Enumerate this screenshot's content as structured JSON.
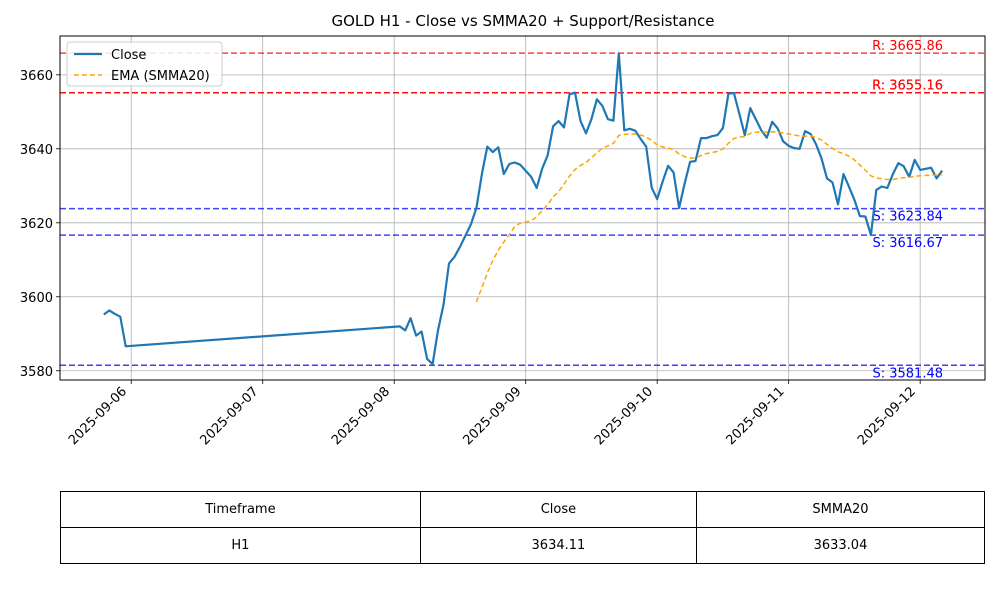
{
  "chart_data": {
    "type": "line",
    "title": "GOLD H1 - Close vs SMMA20 + Support/Resistance",
    "xlabel": "",
    "ylabel": "",
    "x_ticks": [
      "2025-09-06",
      "2025-09-07",
      "2025-09-08",
      "2025-09-09",
      "2025-09-10",
      "2025-09-11",
      "2025-09-12"
    ],
    "y_ticks": [
      3580,
      3600,
      3620,
      3640,
      3660
    ],
    "xlim": [
      "2025-09-05 11:00",
      "2025-09-12 11:50"
    ],
    "ylim": [
      3577.5,
      3670.5
    ],
    "grid": true,
    "legend_position": "top-left",
    "series": [
      {
        "name": "Close",
        "color": "#1f77b4",
        "style": "solid",
        "points": [
          [
            "2025-09-05 19:00",
            3595.2
          ],
          [
            "2025-09-05 20:00",
            3596.3
          ],
          [
            "2025-09-05 21:00",
            3595.4
          ],
          [
            "2025-09-05 22:00",
            3594.6
          ],
          [
            "2025-09-05 23:00",
            3586.6
          ],
          [
            "2025-09-08 01:00",
            3592.0
          ],
          [
            "2025-09-08 02:00",
            3590.9
          ],
          [
            "2025-09-08 03:00",
            3594.2
          ],
          [
            "2025-09-08 04:00",
            3589.5
          ],
          [
            "2025-09-08 05:00",
            3590.6
          ],
          [
            "2025-09-08 06:00",
            3583.2
          ],
          [
            "2025-09-08 07:00",
            3581.8
          ],
          [
            "2025-09-08 08:00",
            3590.9
          ],
          [
            "2025-09-08 09:00",
            3597.8
          ],
          [
            "2025-09-08 10:00",
            3609.0
          ],
          [
            "2025-09-08 11:00",
            3610.8
          ],
          [
            "2025-09-08 12:00",
            3613.5
          ],
          [
            "2025-09-08 13:00",
            3616.5
          ],
          [
            "2025-09-08 14:00",
            3619.6
          ],
          [
            "2025-09-08 15:00",
            3624.0
          ],
          [
            "2025-09-08 16:00",
            3633.2
          ],
          [
            "2025-09-08 17:00",
            3640.6
          ],
          [
            "2025-09-08 18:00",
            3639.1
          ],
          [
            "2025-09-08 19:00",
            3640.4
          ],
          [
            "2025-09-08 20:00",
            3633.2
          ],
          [
            "2025-09-08 21:00",
            3635.9
          ],
          [
            "2025-09-08 22:00",
            3636.3
          ],
          [
            "2025-09-08 23:00",
            3635.7
          ],
          [
            "2025-09-09 01:00",
            3632.4
          ],
          [
            "2025-09-09 02:00",
            3629.4
          ],
          [
            "2025-09-09 03:00",
            3634.6
          ],
          [
            "2025-09-09 04:00",
            3638.2
          ],
          [
            "2025-09-09 05:00",
            3646.1
          ],
          [
            "2025-09-09 06:00",
            3647.5
          ],
          [
            "2025-09-09 07:00",
            3645.8
          ],
          [
            "2025-09-09 08:00",
            3654.7
          ],
          [
            "2025-09-09 09:00",
            3655.2
          ],
          [
            "2025-09-09 10:00",
            3647.5
          ],
          [
            "2025-09-09 11:00",
            3644.2
          ],
          [
            "2025-09-09 12:00",
            3648.0
          ],
          [
            "2025-09-09 13:00",
            3653.4
          ],
          [
            "2025-09-09 14:00",
            3651.6
          ],
          [
            "2025-09-09 15:00",
            3648.0
          ],
          [
            "2025-09-09 16:00",
            3647.6
          ],
          [
            "2025-09-09 17:00",
            3665.8
          ],
          [
            "2025-09-09 18:00",
            3645.0
          ],
          [
            "2025-09-09 19:00",
            3645.4
          ],
          [
            "2025-09-09 20:00",
            3644.9
          ],
          [
            "2025-09-09 21:00",
            3642.6
          ],
          [
            "2025-09-09 22:00",
            3640.6
          ],
          [
            "2025-09-09 23:00",
            3629.5
          ],
          [
            "2025-09-10 00:00",
            3626.4
          ],
          [
            "2025-09-10 01:00",
            3631.2
          ],
          [
            "2025-09-10 02:00",
            3635.4
          ],
          [
            "2025-09-10 03:00",
            3633.6
          ],
          [
            "2025-09-10 04:00",
            3624.0
          ],
          [
            "2025-09-10 05:00",
            3630.6
          ],
          [
            "2025-09-10 06:00",
            3636.5
          ],
          [
            "2025-09-10 07:00",
            3636.7
          ],
          [
            "2025-09-10 08:00",
            3642.9
          ],
          [
            "2025-09-10 09:00",
            3642.9
          ],
          [
            "2025-09-10 10:00",
            3643.4
          ],
          [
            "2025-09-10 11:00",
            3643.7
          ],
          [
            "2025-09-10 12:00",
            3645.6
          ],
          [
            "2025-09-10 13:00",
            3654.9
          ],
          [
            "2025-09-10 14:00",
            3655.1
          ],
          [
            "2025-09-10 15:00",
            3649.4
          ],
          [
            "2025-09-10 16:00",
            3643.7
          ],
          [
            "2025-09-10 17:00",
            3651.0
          ],
          [
            "2025-09-10 18:00",
            3648.0
          ],
          [
            "2025-09-10 19:00",
            3645.0
          ],
          [
            "2025-09-10 20:00",
            3643.0
          ],
          [
            "2025-09-10 21:00",
            3647.3
          ],
          [
            "2025-09-10 22:00",
            3645.5
          ],
          [
            "2025-09-10 23:00",
            3642.0
          ],
          [
            "2025-09-11 00:00",
            3640.8
          ],
          [
            "2025-09-11 01:00",
            3640.2
          ],
          [
            "2025-09-11 02:00",
            3640.0
          ],
          [
            "2025-09-11 03:00",
            3644.8
          ],
          [
            "2025-09-11 04:00",
            3644.0
          ],
          [
            "2025-09-11 05:00",
            3641.2
          ],
          [
            "2025-09-11 06:00",
            3637.4
          ],
          [
            "2025-09-11 07:00",
            3632.0
          ],
          [
            "2025-09-11 08:00",
            3630.9
          ],
          [
            "2025-09-11 09:00",
            3625.0
          ],
          [
            "2025-09-11 10:00",
            3633.2
          ],
          [
            "2025-09-11 11:00",
            3629.8
          ],
          [
            "2025-09-11 12:00",
            3626.2
          ],
          [
            "2025-09-11 13:00",
            3621.8
          ],
          [
            "2025-09-11 14:00",
            3621.7
          ],
          [
            "2025-09-11 15:00",
            3616.7
          ],
          [
            "2025-09-11 16:00",
            3628.9
          ],
          [
            "2025-09-11 17:00",
            3629.8
          ],
          [
            "2025-09-11 18:00",
            3629.4
          ],
          [
            "2025-09-11 19:00",
            3633.1
          ],
          [
            "2025-09-11 20:00",
            3636.1
          ],
          [
            "2025-09-11 21:00",
            3635.3
          ],
          [
            "2025-09-11 22:00",
            3632.4
          ],
          [
            "2025-09-11 23:00",
            3637.0
          ],
          [
            "2025-09-12 00:00",
            3634.3
          ],
          [
            "2025-09-12 02:00",
            3634.9
          ],
          [
            "2025-09-12 03:00",
            3632.0
          ],
          [
            "2025-09-12 04:00",
            3634.1
          ]
        ]
      },
      {
        "name": "EMA (SMMA20)",
        "color": "#ffa500",
        "style": "dashed",
        "points": [
          [
            "2025-09-08 15:00",
            3598.6
          ],
          [
            "2025-09-08 16:00",
            3602.5
          ],
          [
            "2025-09-08 17:00",
            3606.4
          ],
          [
            "2025-09-08 18:00",
            3609.8
          ],
          [
            "2025-09-08 19:00",
            3612.6
          ],
          [
            "2025-09-08 20:00",
            3614.8
          ],
          [
            "2025-09-08 21:00",
            3616.8
          ],
          [
            "2025-09-08 22:00",
            3619.0
          ],
          [
            "2025-09-08 23:00",
            3619.9
          ],
          [
            "2025-09-09 01:00",
            3620.5
          ],
          [
            "2025-09-09 02:00",
            3621.6
          ],
          [
            "2025-09-09 03:00",
            3623.3
          ],
          [
            "2025-09-09 04:00",
            3624.9
          ],
          [
            "2025-09-09 05:00",
            3627.0
          ],
          [
            "2025-09-09 06:00",
            3628.4
          ],
          [
            "2025-09-09 07:00",
            3630.5
          ],
          [
            "2025-09-09 08:00",
            3632.6
          ],
          [
            "2025-09-09 09:00",
            3634.4
          ],
          [
            "2025-09-09 10:00",
            3635.5
          ],
          [
            "2025-09-09 11:00",
            3636.3
          ],
          [
            "2025-09-09 12:00",
            3637.6
          ],
          [
            "2025-09-09 13:00",
            3638.9
          ],
          [
            "2025-09-09 14:00",
            3640.2
          ],
          [
            "2025-09-09 15:00",
            3640.8
          ],
          [
            "2025-09-09 16:00",
            3641.5
          ],
          [
            "2025-09-09 17:00",
            3643.6
          ],
          [
            "2025-09-09 18:00",
            3643.9
          ],
          [
            "2025-09-09 19:00",
            3644.0
          ],
          [
            "2025-09-09 20:00",
            3644.0
          ],
          [
            "2025-09-09 21:00",
            3643.7
          ],
          [
            "2025-09-09 22:00",
            3643.2
          ],
          [
            "2025-09-09 23:00",
            3642.3
          ],
          [
            "2025-09-10 00:00",
            3641.0
          ],
          [
            "2025-09-10 01:00",
            3640.5
          ],
          [
            "2025-09-10 02:00",
            3640.2
          ],
          [
            "2025-09-10 03:00",
            3639.8
          ],
          [
            "2025-09-10 04:00",
            3638.6
          ],
          [
            "2025-09-10 05:00",
            3637.9
          ],
          [
            "2025-09-10 06:00",
            3637.5
          ],
          [
            "2025-09-10 07:00",
            3637.6
          ],
          [
            "2025-09-10 08:00",
            3638.2
          ],
          [
            "2025-09-10 09:00",
            3638.7
          ],
          [
            "2025-09-10 10:00",
            3639.0
          ],
          [
            "2025-09-10 11:00",
            3639.3
          ],
          [
            "2025-09-10 12:00",
            3640.0
          ],
          [
            "2025-09-10 13:00",
            3641.5
          ],
          [
            "2025-09-10 14:00",
            3642.8
          ],
          [
            "2025-09-10 15:00",
            3643.2
          ],
          [
            "2025-09-10 16:00",
            3643.3
          ],
          [
            "2025-09-10 17:00",
            3644.2
          ],
          [
            "2025-09-10 18:00",
            3644.5
          ],
          [
            "2025-09-10 19:00",
            3644.6
          ],
          [
            "2025-09-10 20:00",
            3644.5
          ],
          [
            "2025-09-10 21:00",
            3644.6
          ],
          [
            "2025-09-10 22:00",
            3644.5
          ],
          [
            "2025-09-10 23:00",
            3644.3
          ],
          [
            "2025-09-11 00:00",
            3644.0
          ],
          [
            "2025-09-11 01:00",
            3643.7
          ],
          [
            "2025-09-11 02:00",
            3643.5
          ],
          [
            "2025-09-11 03:00",
            3643.4
          ],
          [
            "2025-09-11 04:00",
            3643.5
          ],
          [
            "2025-09-11 05:00",
            3643.0
          ],
          [
            "2025-09-11 06:00",
            3642.4
          ],
          [
            "2025-09-11 07:00",
            3641.2
          ],
          [
            "2025-09-11 08:00",
            3640.1
          ],
          [
            "2025-09-11 09:00",
            3639.2
          ],
          [
            "2025-09-11 10:00",
            3638.7
          ],
          [
            "2025-09-11 11:00",
            3638.0
          ],
          [
            "2025-09-11 12:00",
            3637.0
          ],
          [
            "2025-09-11 13:00",
            3635.6
          ],
          [
            "2025-09-11 14:00",
            3634.2
          ],
          [
            "2025-09-11 15:00",
            3632.7
          ],
          [
            "2025-09-11 16:00",
            3632.1
          ],
          [
            "2025-09-11 17:00",
            3631.9
          ],
          [
            "2025-09-11 18:00",
            3631.7
          ],
          [
            "2025-09-11 19:00",
            3631.7
          ],
          [
            "2025-09-11 20:00",
            3632.0
          ],
          [
            "2025-09-11 21:00",
            3632.2
          ],
          [
            "2025-09-11 22:00",
            3632.3
          ],
          [
            "2025-09-11 23:00",
            3632.6
          ],
          [
            "2025-09-12 00:00",
            3632.7
          ],
          [
            "2025-09-12 02:00",
            3632.9
          ],
          [
            "2025-09-12 03:00",
            3632.9
          ],
          [
            "2025-09-12 04:00",
            3633.04
          ]
        ]
      }
    ],
    "levels": [
      {
        "kind": "resistance",
        "value": 3665.86,
        "label": "R: 3665.86",
        "color": "#ff0000"
      },
      {
        "kind": "resistance",
        "value": 3655.16,
        "label": "R: 3655.16",
        "color": "#ff0000"
      },
      {
        "kind": "resistance",
        "value": 3655.16,
        "label": "R: 3655.16",
        "color": "#ff0000"
      },
      {
        "kind": "support",
        "value": 3623.84,
        "label": "S: 3623.84",
        "color": "#0000ff"
      },
      {
        "kind": "support",
        "value": 3616.67,
        "label": "S: 3616.67",
        "color": "#0000ff"
      },
      {
        "kind": "support",
        "value": 3581.48,
        "label": "S: 3581.48",
        "color": "#0000ff"
      }
    ]
  },
  "table": {
    "headers": [
      "Timeframe",
      "Close",
      "SMMA20"
    ],
    "row": [
      "H1",
      "3634.11",
      "3633.04"
    ]
  }
}
